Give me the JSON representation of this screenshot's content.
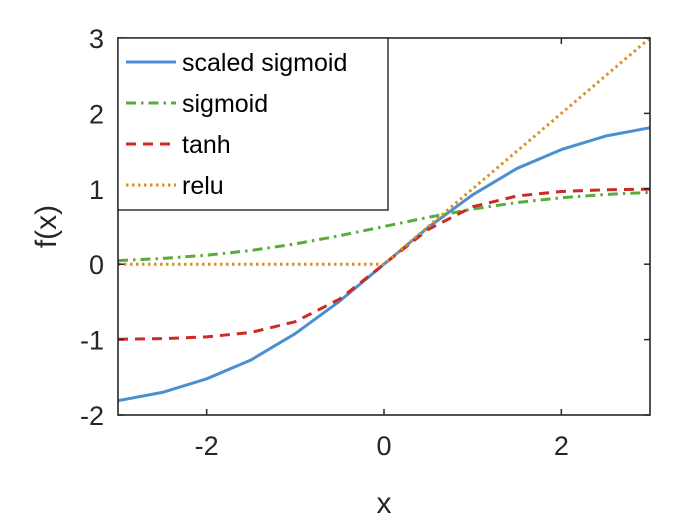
{
  "chart_data": {
    "type": "line",
    "xlabel": "x",
    "ylabel": "f(x)",
    "xlim": [
      -3,
      3
    ],
    "ylim": [
      -2,
      3
    ],
    "xticks": [
      -2,
      0,
      2
    ],
    "yticks": [
      -2,
      -1,
      0,
      1,
      2,
      3
    ],
    "xtick_labels": [
      "-2",
      "0",
      "2"
    ],
    "ytick_labels": [
      "-2",
      "-1",
      "0",
      "1",
      "2",
      "3"
    ],
    "grid": false,
    "legend_position": "top-left",
    "series": [
      {
        "name": "scaled sigmoid",
        "color": "#4a90d0",
        "style": "solid",
        "x": [
          -3,
          -2.5,
          -2,
          -1.5,
          -1,
          -0.5,
          0,
          0.5,
          1,
          1.5,
          2,
          2.5,
          3
        ],
        "y": [
          -1.81,
          -1.7,
          -1.52,
          -1.27,
          -0.92,
          -0.49,
          0,
          0.49,
          0.92,
          1.27,
          1.52,
          1.7,
          1.81
        ]
      },
      {
        "name": "sigmoid",
        "color": "#5aab3c",
        "style": "dashdot",
        "x": [
          -3,
          -2.5,
          -2,
          -1.5,
          -1,
          -0.5,
          0,
          0.5,
          1,
          1.5,
          2,
          2.5,
          3
        ],
        "y": [
          0.047,
          0.076,
          0.119,
          0.182,
          0.269,
          0.378,
          0.5,
          0.622,
          0.731,
          0.818,
          0.881,
          0.924,
          0.953
        ]
      },
      {
        "name": "tanh",
        "color": "#cc2b22",
        "style": "dashed",
        "x": [
          -3,
          -2.5,
          -2,
          -1.5,
          -1,
          -0.5,
          0,
          0.5,
          1,
          1.5,
          2,
          2.5,
          3
        ],
        "y": [
          -0.995,
          -0.987,
          -0.964,
          -0.905,
          -0.762,
          -0.462,
          0,
          0.462,
          0.762,
          0.905,
          0.964,
          0.987,
          0.995
        ]
      },
      {
        "name": "relu",
        "color": "#d8901f",
        "style": "dotted",
        "x": [
          -3,
          0,
          3
        ],
        "y": [
          0,
          0,
          3
        ]
      }
    ]
  }
}
